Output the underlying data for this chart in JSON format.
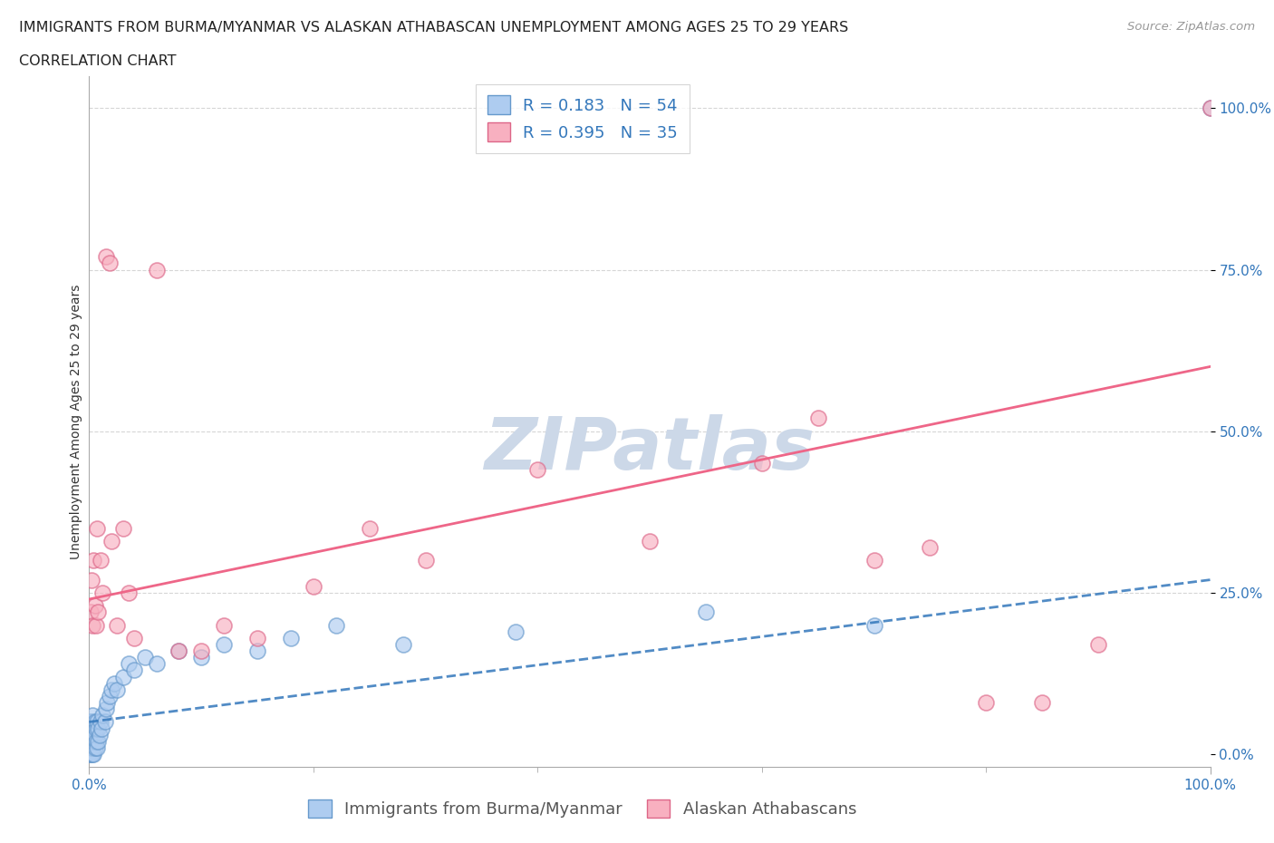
{
  "title": "IMMIGRANTS FROM BURMA/MYANMAR VS ALASKAN ATHABASCAN UNEMPLOYMENT AMONG AGES 25 TO 29 YEARS",
  "subtitle": "CORRELATION CHART",
  "source": "Source: ZipAtlas.com",
  "ylabel_label": "Unemployment Among Ages 25 to 29 years",
  "watermark": "ZIPatlas",
  "series1_label": "Immigrants from Burma/Myanmar",
  "series1_color": "#aeccf0",
  "series1_edge": "#6699cc",
  "series1_R": 0.183,
  "series1_N": 54,
  "series1_line_color": "#3377bb",
  "series1_line_b0": 0.05,
  "series1_line_b1": 0.22,
  "series2_label": "Alaskan Athabascans",
  "series2_color": "#f8b0c0",
  "series2_edge": "#dd6688",
  "series2_R": 0.395,
  "series2_N": 35,
  "series2_line_color": "#ee6688",
  "series2_line_b0": 0.24,
  "series2_line_b1": 0.36,
  "legend_color": "#3377bb",
  "series1_x": [
    0.0,
    0.0,
    0.001,
    0.001,
    0.001,
    0.001,
    0.001,
    0.002,
    0.002,
    0.002,
    0.002,
    0.003,
    0.003,
    0.003,
    0.003,
    0.004,
    0.004,
    0.004,
    0.005,
    0.005,
    0.005,
    0.006,
    0.006,
    0.007,
    0.007,
    0.008,
    0.008,
    0.009,
    0.01,
    0.011,
    0.012,
    0.014,
    0.015,
    0.016,
    0.018,
    0.02,
    0.022,
    0.025,
    0.03,
    0.035,
    0.04,
    0.05,
    0.06,
    0.08,
    0.1,
    0.12,
    0.15,
    0.18,
    0.22,
    0.28,
    0.38,
    0.55,
    0.7,
    1.0
  ],
  "series1_y": [
    0.0,
    0.02,
    0.0,
    0.01,
    0.02,
    0.03,
    0.05,
    0.0,
    0.01,
    0.02,
    0.05,
    0.0,
    0.01,
    0.03,
    0.06,
    0.0,
    0.02,
    0.04,
    0.01,
    0.03,
    0.05,
    0.02,
    0.04,
    0.01,
    0.05,
    0.02,
    0.04,
    0.03,
    0.05,
    0.04,
    0.06,
    0.05,
    0.07,
    0.08,
    0.09,
    0.1,
    0.11,
    0.1,
    0.12,
    0.14,
    0.13,
    0.15,
    0.14,
    0.16,
    0.15,
    0.17,
    0.16,
    0.18,
    0.2,
    0.17,
    0.19,
    0.22,
    0.2,
    1.0
  ],
  "series2_x": [
    0.001,
    0.002,
    0.003,
    0.004,
    0.005,
    0.006,
    0.007,
    0.008,
    0.01,
    0.012,
    0.015,
    0.018,
    0.02,
    0.025,
    0.03,
    0.035,
    0.04,
    0.06,
    0.08,
    0.1,
    0.12,
    0.15,
    0.2,
    0.25,
    0.3,
    0.4,
    0.5,
    0.6,
    0.65,
    0.7,
    0.75,
    0.8,
    0.85,
    0.9,
    1.0
  ],
  "series2_y": [
    0.22,
    0.27,
    0.2,
    0.3,
    0.23,
    0.2,
    0.35,
    0.22,
    0.3,
    0.25,
    0.77,
    0.76,
    0.33,
    0.2,
    0.35,
    0.25,
    0.18,
    0.75,
    0.16,
    0.16,
    0.2,
    0.18,
    0.26,
    0.35,
    0.3,
    0.44,
    0.33,
    0.45,
    0.52,
    0.3,
    0.32,
    0.08,
    0.08,
    0.17,
    1.0
  ],
  "xlim": [
    0,
    1.0
  ],
  "ylim": [
    -0.02,
    1.05
  ],
  "background_color": "#ffffff",
  "grid_color": "#cccccc",
  "title_fontsize": 11.5,
  "subtitle_fontsize": 11.5,
  "axis_tick_fontsize": 11,
  "legend_fontsize": 13,
  "ylabel_fontsize": 10,
  "watermark_color": "#ccd8e8",
  "watermark_fontsize": 58,
  "source_fontsize": 9.5
}
